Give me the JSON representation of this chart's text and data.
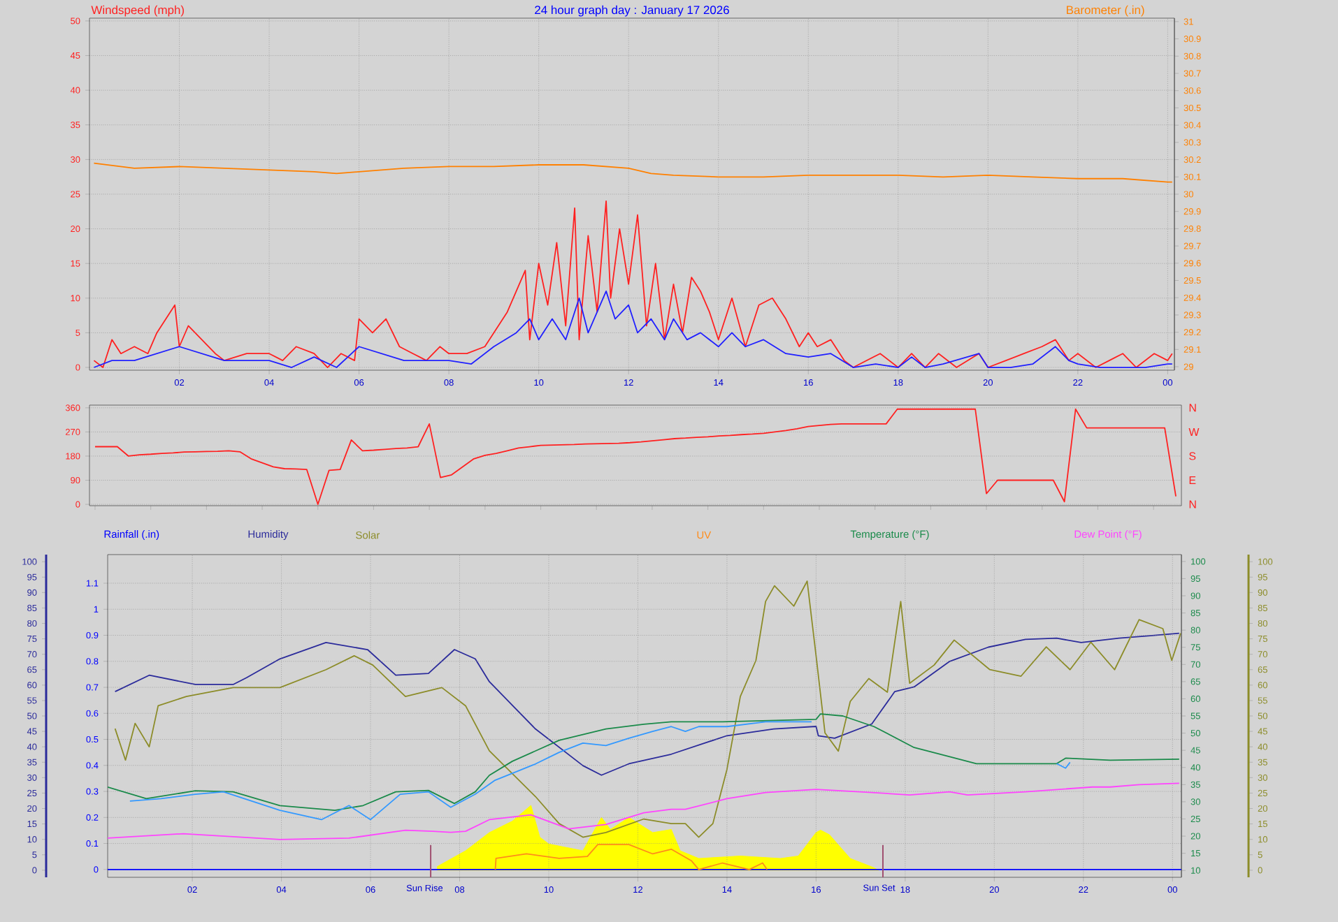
{
  "chart_data": [
    {
      "type": "line",
      "title": "24 hour graph day : January 17 2026",
      "ylabel": "Windspeed (mph)",
      "y2label": "Barometer (.in)",
      "xlim": [
        "2026-01-17T00:00",
        "2026-01-18T00:09"
      ],
      "xticks": [
        {
          "value": "2026-01-17T02:00",
          "label": "02"
        },
        {
          "value": "2026-01-17T04:00",
          "label": "04"
        },
        {
          "value": "2026-01-17T06:00",
          "label": "06"
        },
        {
          "value": "2026-01-17T08:00",
          "label": "08"
        },
        {
          "value": "2026-01-17T10:00",
          "label": "10"
        },
        {
          "value": "2026-01-17T12:00",
          "label": "12"
        },
        {
          "value": "2026-01-17T14:00",
          "label": "14"
        },
        {
          "value": "2026-01-17T16:00",
          "label": "16"
        },
        {
          "value": "2026-01-17T18:00",
          "label": "18"
        },
        {
          "value": "2026-01-17T20:00",
          "label": "20"
        },
        {
          "value": "2026-01-17T22:00",
          "label": "22"
        },
        {
          "value": "2026-01-18T00:00",
          "label": "00"
        }
      ],
      "ylim": [
        -0.4,
        50.4
      ],
      "yticks": [
        0,
        5,
        10,
        15,
        20,
        25,
        30,
        35,
        40,
        45,
        50
      ],
      "y2lim": [
        28.98,
        31.02
      ],
      "y2ticks": [
        29,
        29.1,
        29.2,
        29.3,
        29.4,
        29.5,
        29.6,
        29.7,
        29.8,
        29.9,
        30,
        30.1,
        30.2,
        30.3,
        30.4,
        30.5,
        30.6,
        30.7,
        30.8,
        30.9,
        31
      ],
      "grid": true,
      "series": [
        {
          "color": "#ff2020",
          "x": [
            "2026-01-17T00:06",
            "2026-01-17T00:18",
            "2026-01-17T00:30",
            "2026-01-17T00:42",
            "2026-01-17T01:00",
            "2026-01-17T01:18",
            "2026-01-17T01:30",
            "2026-01-17T01:42",
            "2026-01-17T01:54",
            "2026-01-17T02:00",
            "2026-01-17T02:12",
            "2026-01-17T02:30",
            "2026-01-17T02:48",
            "2026-01-17T03:00",
            "2026-01-17T03:30",
            "2026-01-17T04:00",
            "2026-01-17T04:18",
            "2026-01-17T04:36",
            "2026-01-17T05:00",
            "2026-01-17T05:18",
            "2026-01-17T05:36",
            "2026-01-17T05:54",
            "2026-01-17T06:00",
            "2026-01-17T06:18",
            "2026-01-17T06:36",
            "2026-01-17T06:54",
            "2026-01-17T07:12",
            "2026-01-17T07:30",
            "2026-01-17T07:48",
            "2026-01-17T08:00",
            "2026-01-17T08:24",
            "2026-01-17T08:48",
            "2026-01-17T09:00",
            "2026-01-17T09:18",
            "2026-01-17T09:30",
            "2026-01-17T09:42",
            "2026-01-17T09:48",
            "2026-01-17T10:00",
            "2026-01-17T10:12",
            "2026-01-17T10:24",
            "2026-01-17T10:36",
            "2026-01-17T10:48",
            "2026-01-17T10:54",
            "2026-01-17T11:06",
            "2026-01-17T11:18",
            "2026-01-17T11:30",
            "2026-01-17T11:36",
            "2026-01-17T11:48",
            "2026-01-17T12:00",
            "2026-01-17T12:12",
            "2026-01-17T12:24",
            "2026-01-17T12:36",
            "2026-01-17T12:48",
            "2026-01-17T13:00",
            "2026-01-17T13:12",
            "2026-01-17T13:24",
            "2026-01-17T13:36",
            "2026-01-17T13:48",
            "2026-01-17T14:00",
            "2026-01-17T14:18",
            "2026-01-17T14:36",
            "2026-01-17T14:54",
            "2026-01-17T15:12",
            "2026-01-17T15:30",
            "2026-01-17T15:48",
            "2026-01-17T16:00",
            "2026-01-17T16:12",
            "2026-01-17T16:30",
            "2026-01-17T16:48",
            "2026-01-17T17:00",
            "2026-01-17T17:18",
            "2026-01-17T17:36",
            "2026-01-17T18:00",
            "2026-01-17T18:18",
            "2026-01-17T18:36",
            "2026-01-17T18:54",
            "2026-01-17T19:18",
            "2026-01-17T19:48",
            "2026-01-17T20:00",
            "2026-01-17T20:24",
            "2026-01-17T20:48",
            "2026-01-17T21:12",
            "2026-01-17T21:30",
            "2026-01-17T21:48",
            "2026-01-17T22:00",
            "2026-01-17T22:24",
            "2026-01-17T22:42",
            "2026-01-17T23:00",
            "2026-01-17T23:18",
            "2026-01-17T23:42",
            "2026-01-18T00:00",
            "2026-01-18T00:06"
          ],
          "values": [
            1,
            0,
            4,
            2,
            3,
            2,
            5,
            7,
            9,
            3,
            6,
            4,
            2,
            1,
            2,
            2,
            1,
            3,
            2,
            0,
            2,
            1,
            7,
            5,
            7,
            3,
            2,
            1,
            3,
            2,
            2,
            3,
            5,
            8,
            11,
            14,
            4,
            15,
            9,
            18,
            6,
            23,
            4,
            19,
            8,
            24,
            10,
            20,
            12,
            22,
            6,
            15,
            4,
            12,
            5,
            13,
            11,
            8,
            4,
            10,
            3,
            9,
            10,
            7,
            3,
            5,
            3,
            4,
            1,
            0,
            1,
            2,
            0,
            2,
            0,
            2,
            0,
            2,
            0,
            1,
            2,
            3,
            4,
            1,
            2,
            0,
            1,
            2,
            0,
            2,
            1,
            2
          ]
        },
        {
          "color": "#2020ff",
          "x": [
            "2026-01-17T00:06",
            "2026-01-17T00:30",
            "2026-01-17T01:00",
            "2026-01-17T01:30",
            "2026-01-17T02:00",
            "2026-01-17T02:30",
            "2026-01-17T03:00",
            "2026-01-17T03:30",
            "2026-01-17T04:00",
            "2026-01-17T04:30",
            "2026-01-17T05:00",
            "2026-01-17T05:30",
            "2026-01-17T06:00",
            "2026-01-17T06:30",
            "2026-01-17T07:00",
            "2026-01-17T07:30",
            "2026-01-17T08:00",
            "2026-01-17T08:30",
            "2026-01-17T09:00",
            "2026-01-17T09:30",
            "2026-01-17T09:48",
            "2026-01-17T10:00",
            "2026-01-17T10:18",
            "2026-01-17T10:36",
            "2026-01-17T10:54",
            "2026-01-17T11:06",
            "2026-01-17T11:30",
            "2026-01-17T11:42",
            "2026-01-17T12:00",
            "2026-01-17T12:12",
            "2026-01-17T12:30",
            "2026-01-17T12:48",
            "2026-01-17T13:00",
            "2026-01-17T13:18",
            "2026-01-17T13:36",
            "2026-01-17T14:00",
            "2026-01-17T14:18",
            "2026-01-17T14:36",
            "2026-01-17T15:00",
            "2026-01-17T15:30",
            "2026-01-17T16:00",
            "2026-01-17T16:30",
            "2026-01-17T17:00",
            "2026-01-17T17:30",
            "2026-01-17T18:00",
            "2026-01-17T18:18",
            "2026-01-17T18:36",
            "2026-01-17T19:00",
            "2026-01-17T19:48",
            "2026-01-17T20:00",
            "2026-01-17T20:30",
            "2026-01-17T21:00",
            "2026-01-17T21:30",
            "2026-01-17T21:48",
            "2026-01-17T22:00",
            "2026-01-17T22:30",
            "2026-01-17T23:00",
            "2026-01-17T23:30",
            "2026-01-18T00:00",
            "2026-01-18T00:06"
          ],
          "values": [
            0,
            1,
            1,
            2,
            3,
            2,
            1,
            1,
            1,
            0,
            1.5,
            0,
            3,
            2,
            1,
            1,
            1,
            0.5,
            3,
            5,
            7,
            4,
            7,
            4,
            10,
            5,
            11,
            7,
            9,
            5,
            7,
            4,
            7,
            4,
            5,
            3,
            5,
            3,
            4,
            2,
            1.5,
            2,
            0,
            0.5,
            0,
            1.5,
            0,
            0.5,
            2,
            0,
            0,
            0.5,
            3,
            1,
            0.5,
            0,
            0,
            0,
            0.5,
            0.5
          ]
        },
        {
          "color": "#ff8000",
          "axis": "y2",
          "x": [
            "2026-01-17T00:06",
            "2026-01-17T01:00",
            "2026-01-17T02:00",
            "2026-01-17T03:00",
            "2026-01-17T04:00",
            "2026-01-17T05:00",
            "2026-01-17T05:30",
            "2026-01-17T06:00",
            "2026-01-17T07:00",
            "2026-01-17T08:00",
            "2026-01-17T09:00",
            "2026-01-17T10:00",
            "2026-01-17T11:00",
            "2026-01-17T12:00",
            "2026-01-17T12:30",
            "2026-01-17T13:00",
            "2026-01-17T14:00",
            "2026-01-17T15:00",
            "2026-01-17T16:00",
            "2026-01-17T17:00",
            "2026-01-17T18:00",
            "2026-01-17T19:00",
            "2026-01-17T20:00",
            "2026-01-17T21:00",
            "2026-01-17T22:00",
            "2026-01-17T23:00",
            "2026-01-17T23:30",
            "2026-01-18T00:00",
            "2026-01-18T00:06"
          ],
          "values": [
            30.18,
            30.15,
            30.16,
            30.15,
            30.14,
            30.13,
            30.12,
            30.13,
            30.15,
            30.16,
            30.16,
            30.17,
            30.17,
            30.15,
            30.12,
            30.11,
            30.1,
            30.1,
            30.11,
            30.11,
            30.11,
            30.1,
            30.11,
            30.1,
            30.09,
            30.09,
            30.08,
            30.07,
            30.07
          ]
        }
      ]
    },
    {
      "type": "line",
      "categories": [
        null,
        null,
        null,
        null,
        null,
        null,
        null,
        null,
        null,
        null,
        null,
        null,
        null,
        null,
        null,
        null,
        null,
        null,
        null,
        null,
        null,
        null,
        null,
        null,
        null,
        null,
        null,
        null,
        null,
        null,
        null,
        null,
        null,
        null,
        null,
        null,
        null,
        null,
        null,
        null,
        null,
        null,
        null,
        null,
        null,
        null,
        null,
        null,
        null,
        null,
        null,
        null,
        null,
        null,
        null,
        null,
        null,
        null,
        null,
        null,
        null,
        null,
        null,
        null,
        null,
        null,
        null,
        null,
        null,
        null,
        null,
        null,
        null,
        null,
        null,
        null,
        null,
        null,
        null,
        null,
        null,
        null,
        null,
        null,
        null,
        null,
        null,
        null,
        null,
        null,
        null,
        null,
        null,
        null,
        null,
        null,
        null,
        null
      ],
      "ylim": [
        -5,
        370
      ],
      "yticks": [
        0,
        90,
        180,
        270,
        360
      ],
      "annotations": [
        "N",
        "W",
        "S",
        "E",
        "N"
      ],
      "grid": "y",
      "series": [
        {
          "color": "#ff2020",
          "values": [
            215,
            215,
            215,
            180,
            185,
            187,
            190,
            192,
            195,
            196,
            197,
            198,
            200,
            196,
            170,
            155,
            140,
            133,
            132,
            130,
            0,
            127,
            130,
            240,
            200,
            202,
            205,
            208,
            210,
            215,
            300,
            100,
            110,
            140,
            170,
            183,
            190,
            200,
            210,
            215,
            220,
            221,
            222,
            223,
            225,
            226,
            227,
            228,
            230,
            233,
            237,
            241,
            245,
            247,
            250,
            252,
            255,
            257,
            260,
            262,
            265,
            270,
            275,
            282,
            290,
            294,
            298,
            300,
            300,
            300,
            300,
            300,
            355,
            355,
            355,
            355,
            355,
            355,
            355,
            355,
            40,
            90,
            90,
            90,
            90,
            90,
            90,
            10,
            355,
            285,
            285,
            285,
            285,
            285,
            285,
            285,
            285,
            30
          ]
        }
      ]
    },
    {
      "type": "line",
      "xlim": [
        "2026-01-17T00:06",
        "2026-01-18T00:12"
      ],
      "xticks": [
        {
          "value": "2026-01-17T02:00",
          "label": "02"
        },
        {
          "value": "2026-01-17T04:00",
          "label": "04"
        },
        {
          "value": "2026-01-17T06:00",
          "label": "06"
        },
        {
          "value": "2026-01-17T08:00",
          "label": "08"
        },
        {
          "value": "2026-01-17T10:00",
          "label": "10"
        },
        {
          "value": "2026-01-17T12:00",
          "label": "12"
        },
        {
          "value": "2026-01-17T14:00",
          "label": "14"
        },
        {
          "value": "2026-01-17T16:00",
          "label": "16"
        },
        {
          "value": "2026-01-17T18:00",
          "label": "18"
        },
        {
          "value": "2026-01-17T20:00",
          "label": "20"
        },
        {
          "value": "2026-01-17T22:00",
          "label": "22"
        },
        {
          "value": "2026-01-18T00:00",
          "label": "00"
        }
      ],
      "ylim": [
        -2.3,
        102.3
      ],
      "yticks": [
        0,
        5,
        10,
        15,
        20,
        25,
        30,
        35,
        40,
        45,
        50,
        55,
        60,
        65,
        70,
        75,
        80,
        85,
        90,
        95,
        100
      ],
      "y2lim": [
        -0.03,
        1.21
      ],
      "y2ticks": [
        0,
        0.1,
        0.2,
        0.3,
        0.4,
        0.5,
        0.6,
        0.7,
        0.8,
        0.9,
        1,
        1.1
      ],
      "y3lim": [
        8,
        102
      ],
      "y3ticks": [
        10,
        15,
        20,
        25,
        30,
        35,
        40,
        45,
        50,
        55,
        60,
        65,
        70,
        75,
        80,
        85,
        90,
        95,
        100
      ],
      "annotations": [
        "0",
        "5",
        "10",
        "15",
        "20",
        "25",
        "30",
        "35",
        "40",
        "45",
        "50",
        "55",
        "60",
        "65",
        "70",
        "75",
        "80",
        "85",
        "90",
        "95",
        "100"
      ],
      "grid": true,
      "legend": "top",
      "ref_lines": [
        {
          "axis": "x",
          "value": "2026-01-17T07:21",
          "label": "Sun Rise",
          "color": "#a05070"
        },
        {
          "axis": "x",
          "value": "2026-01-17T17:30",
          "label": "Sun Set",
          "color": "#a05070"
        }
      ],
      "series": [
        {
          "name": "Rainfall (.in)",
          "color": "#0000ff",
          "axis": "y2",
          "x": [
            "2026-01-17T00:06",
            "2026-01-18T00:12"
          ],
          "values": [
            0,
            0
          ]
        },
        {
          "name": "Humidity",
          "color": "#2b2b9b",
          "x": [
            "2026-01-17T00:16",
            "2026-01-17T01:02",
            "2026-01-17T02:04",
            "2026-01-17T02:55",
            "2026-01-17T03:13",
            "2026-01-17T03:58",
            "2026-01-17T05:00",
            "2026-01-17T05:56",
            "2026-01-17T06:34",
            "2026-01-17T07:18",
            "2026-01-17T07:53",
            "2026-01-17T08:21",
            "2026-01-17T08:40",
            "2026-01-17T09:42",
            "2026-01-17T10:46",
            "2026-01-17T11:11",
            "2026-01-17T11:48",
            "2026-01-17T12:45",
            "2026-01-17T14:00",
            "2026-01-17T15:03",
            "2026-01-17T16:00",
            "2026-01-17T16:03",
            "2026-01-17T16:25",
            "2026-01-17T17:15",
            "2026-01-17T17:46",
            "2026-01-17T18:12",
            "2026-01-17T19:00",
            "2026-01-17T19:52",
            "2026-01-17T20:42",
            "2026-01-17T21:24",
            "2026-01-17T21:57",
            "2026-01-17T22:48",
            "2026-01-17T23:30",
            "2026-01-18T00:09"
          ],
          "values": [
            57.9,
            63.2,
            60.2,
            60.2,
            62.4,
            68.5,
            73.8,
            71.5,
            63.2,
            63.8,
            71.5,
            68.5,
            61.1,
            45.8,
            33.9,
            30.8,
            34.5,
            37.6,
            43.6,
            45.8,
            46.6,
            43.6,
            42.8,
            47.4,
            57.9,
            59.4,
            67.7,
            72.3,
            74.8,
            75.2,
            73.8,
            75.2,
            76,
            76.8
          ]
        },
        {
          "name": "Solar",
          "color": "#8c8c28",
          "x": [
            "2026-01-17T00:16",
            "2026-01-17T00:30",
            "2026-01-17T00:43",
            "2026-01-17T01:02",
            "2026-01-17T01:14",
            "2026-01-17T01:52",
            "2026-01-17T02:55",
            "2026-01-17T03:58",
            "2026-01-17T05:00",
            "2026-01-17T05:38",
            "2026-01-17T06:03",
            "2026-01-17T06:47",
            "2026-01-17T07:36",
            "2026-01-17T08:08",
            "2026-01-17T08:40",
            "2026-01-17T09:11",
            "2026-01-17T09:42",
            "2026-01-17T10:14",
            "2026-01-17T10:46",
            "2026-01-17T11:17",
            "2026-01-17T12:08",
            "2026-01-17T12:45",
            "2026-01-17T13:04",
            "2026-01-17T13:22",
            "2026-01-17T13:41",
            "2026-01-17T14:00",
            "2026-01-17T14:18",
            "2026-01-17T14:39",
            "2026-01-17T14:52",
            "2026-01-17T15:04",
            "2026-01-17T15:30",
            "2026-01-17T15:48",
            "2026-01-17T16:00",
            "2026-01-17T16:12",
            "2026-01-17T16:30",
            "2026-01-17T16:46",
            "2026-01-17T17:11",
            "2026-01-17T17:36",
            "2026-01-17T17:54",
            "2026-01-17T18:06",
            "2026-01-17T18:39",
            "2026-01-17T19:06",
            "2026-01-17T19:54",
            "2026-01-17T20:36",
            "2026-01-17T21:10",
            "2026-01-17T21:42",
            "2026-01-17T22:10",
            "2026-01-17T22:42",
            "2026-01-17T23:15",
            "2026-01-17T23:47",
            "2026-01-17T23:59",
            "2026-01-18T00:11"
          ],
          "values": [
            45.9,
            35.7,
            47.6,
            40,
            53.3,
            56.3,
            59.2,
            59.2,
            65,
            69.5,
            66.5,
            56.3,
            59.2,
            53.3,
            38.7,
            31.3,
            23.9,
            15.1,
            10.7,
            12.2,
            16.6,
            15.1,
            15.1,
            10.7,
            15.1,
            32.7,
            56.3,
            68,
            87.1,
            92.2,
            85.6,
            93.7,
            69.5,
            44.5,
            38.6,
            54.7,
            62.1,
            57.7,
            87.1,
            60.6,
            66.5,
            74.6,
            65,
            62.9,
            72.4,
            65,
            73.9,
            65,
            81.2,
            78.3,
            68,
            76.8
          ]
        },
        {
          "name": "UV",
          "color": "#ff8c1a",
          "axis": "y2",
          "x": [
            "2026-01-17T08:48",
            "2026-01-17T08:49",
            "2026-01-17T09:30",
            "2026-01-17T10:14",
            "2026-01-17T10:52",
            "2026-01-17T11:06",
            "2026-01-17T11:48",
            "2026-01-17T12:20",
            "2026-01-17T12:45",
            "2026-01-17T13:12",
            "2026-01-17T13:22",
            "2026-01-17T13:54",
            "2026-01-17T14:30",
            "2026-01-17T14:48",
            "2026-01-17T14:54"
          ],
          "values": [
            0,
            0.043,
            0.06,
            0.043,
            0.05,
            0.096,
            0.096,
            0.06,
            0.078,
            0.034,
            0,
            0.025,
            0,
            0.025,
            0
          ]
        },
        {
          "name": "Temperature (°F)",
          "color": "#1a8a4a",
          "axis": "y3",
          "x": [
            "2026-01-17T00:06",
            "2026-01-17T00:58",
            "2026-01-17T02:04",
            "2026-01-17T02:55",
            "2026-01-17T03:58",
            "2026-01-17T05:12",
            "2026-01-17T05:50",
            "2026-01-17T06:34",
            "2026-01-17T07:18",
            "2026-01-17T07:53",
            "2026-01-17T08:21",
            "2026-01-17T08:40",
            "2026-01-17T09:11",
            "2026-01-17T10:14",
            "2026-01-17T11:17",
            "2026-01-17T12:08",
            "2026-01-17T12:45",
            "2026-01-17T13:54",
            "2026-01-17T16:00",
            "2026-01-17T16:06",
            "2026-01-17T16:36",
            "2026-01-17T17:18",
            "2026-01-17T18:12",
            "2026-01-17T19:00",
            "2026-01-17T19:36",
            "2026-01-17T20:42",
            "2026-01-17T21:24",
            "2026-01-17T21:36",
            "2026-01-17T22:36",
            "2026-01-18T00:09"
          ],
          "values": [
            34.3,
            30.9,
            33.2,
            32.9,
            28.9,
            27.5,
            28.9,
            32.9,
            33.3,
            29.5,
            32.9,
            37.7,
            41.8,
            47.9,
            51.2,
            52.6,
            53.3,
            53.3,
            54,
            55.6,
            55,
            51.9,
            45.8,
            43.1,
            41.1,
            41.1,
            41.1,
            42.7,
            42.1,
            42.4
          ]
        },
        {
          "name": "Dew Point (°F)",
          "color": "#ff44ff",
          "axis": "y3",
          "x": [
            "2026-01-17T00:06",
            "2026-01-17T01:48",
            "2026-01-17T03:58",
            "2026-01-17T05:31",
            "2026-01-17T06:47",
            "2026-01-17T07:24",
            "2026-01-17T07:48",
            "2026-01-17T08:08",
            "2026-01-17T08:40",
            "2026-01-17T09:36",
            "2026-01-17T10:27",
            "2026-01-17T11:17",
            "2026-01-17T12:08",
            "2026-01-17T12:45",
            "2026-01-17T13:04",
            "2026-01-17T14:00",
            "2026-01-17T14:52",
            "2026-01-17T16:00",
            "2026-01-17T17:15",
            "2026-01-17T18:06",
            "2026-01-17T19:00",
            "2026-01-17T19:24",
            "2026-01-17T20:42",
            "2026-01-17T22:12",
            "2026-01-17T22:36",
            "2026-01-17T23:15",
            "2026-01-18T00:09"
          ],
          "values": [
            19.4,
            20.7,
            19.0,
            19.4,
            21.7,
            21.4,
            21.1,
            21.4,
            24.8,
            26.2,
            22.1,
            23.4,
            26.8,
            27.8,
            27.8,
            30.9,
            32.7,
            33.6,
            32.7,
            32,
            32.9,
            32,
            32.9,
            34.3,
            34.3,
            35,
            35.4
          ]
        },
        {
          "color": "#3399ff",
          "axis": "y3",
          "x": [
            "2026-01-17T00:36",
            "2026-01-17T01:18",
            "2026-01-17T02:04",
            "2026-01-17T02:42",
            "2026-01-17T03:58",
            "2026-01-17T04:54",
            "2026-01-17T05:31",
            "2026-01-17T06:00",
            "2026-01-17T06:40",
            "2026-01-17T07:18",
            "2026-01-17T07:48",
            "2026-01-17T08:21",
            "2026-01-17T08:47",
            "2026-01-17T09:11",
            "2026-01-17T09:42",
            "2026-01-17T10:14",
            "2026-01-17T10:46",
            "2026-01-17T11:17",
            "2026-01-17T11:48",
            "2026-01-17T12:20",
            "2026-01-17T12:45",
            "2026-01-17T13:04",
            "2026-01-17T13:22",
            "2026-01-17T14:00",
            "2026-01-17T14:52",
            "2026-01-17T15:54",
            "2026-01-17T16:00",
            "2026-01-17T21:24",
            "2026-01-17T21:36",
            "2026-01-17T21:42"
          ],
          "values": [
            30.2,
            30.9,
            32.2,
            32.9,
            27.5,
            24.8,
            28.9,
            24.8,
            32.2,
            32.9,
            28.4,
            32.2,
            36.2,
            38.3,
            41.0,
            44.4,
            47.1,
            46.4,
            48.5,
            50.5,
            51.9,
            50.5,
            51.9,
            51.9,
            53.3,
            53.3,
            null,
            41.1,
            39.8,
            41.5
          ]
        },
        {
          "type": "area",
          "color": "#ffff00",
          "x": [
            "2026-01-17T07:30",
            "2026-01-17T08:08",
            "2026-01-17T08:40",
            "2026-01-17T09:11",
            "2026-01-17T09:36",
            "2026-01-17T09:48",
            "2026-01-17T10:00",
            "2026-01-17T10:46",
            "2026-01-17T11:11",
            "2026-01-17T11:23",
            "2026-01-17T11:48",
            "2026-01-17T12:20",
            "2026-01-17T12:45",
            "2026-01-17T12:57",
            "2026-01-17T13:22",
            "2026-01-17T14:18",
            "2026-01-17T15:12",
            "2026-01-17T15:36",
            "2026-01-17T16:00",
            "2026-01-17T16:06",
            "2026-01-17T16:18",
            "2026-01-17T16:46",
            "2026-01-17T17:18",
            "2026-01-17T17:24"
          ],
          "values": [
            1.2,
            6.3,
            12.2,
            15.9,
            21,
            10.7,
            8.5,
            6.3,
            17.1,
            13.2,
            17.1,
            12.2,
            13.2,
            6.3,
            3.8,
            4.6,
            3.8,
            4.6,
            12.2,
            13.0,
            11.5,
            3.8,
            0.8,
            0
          ]
        }
      ]
    }
  ]
}
